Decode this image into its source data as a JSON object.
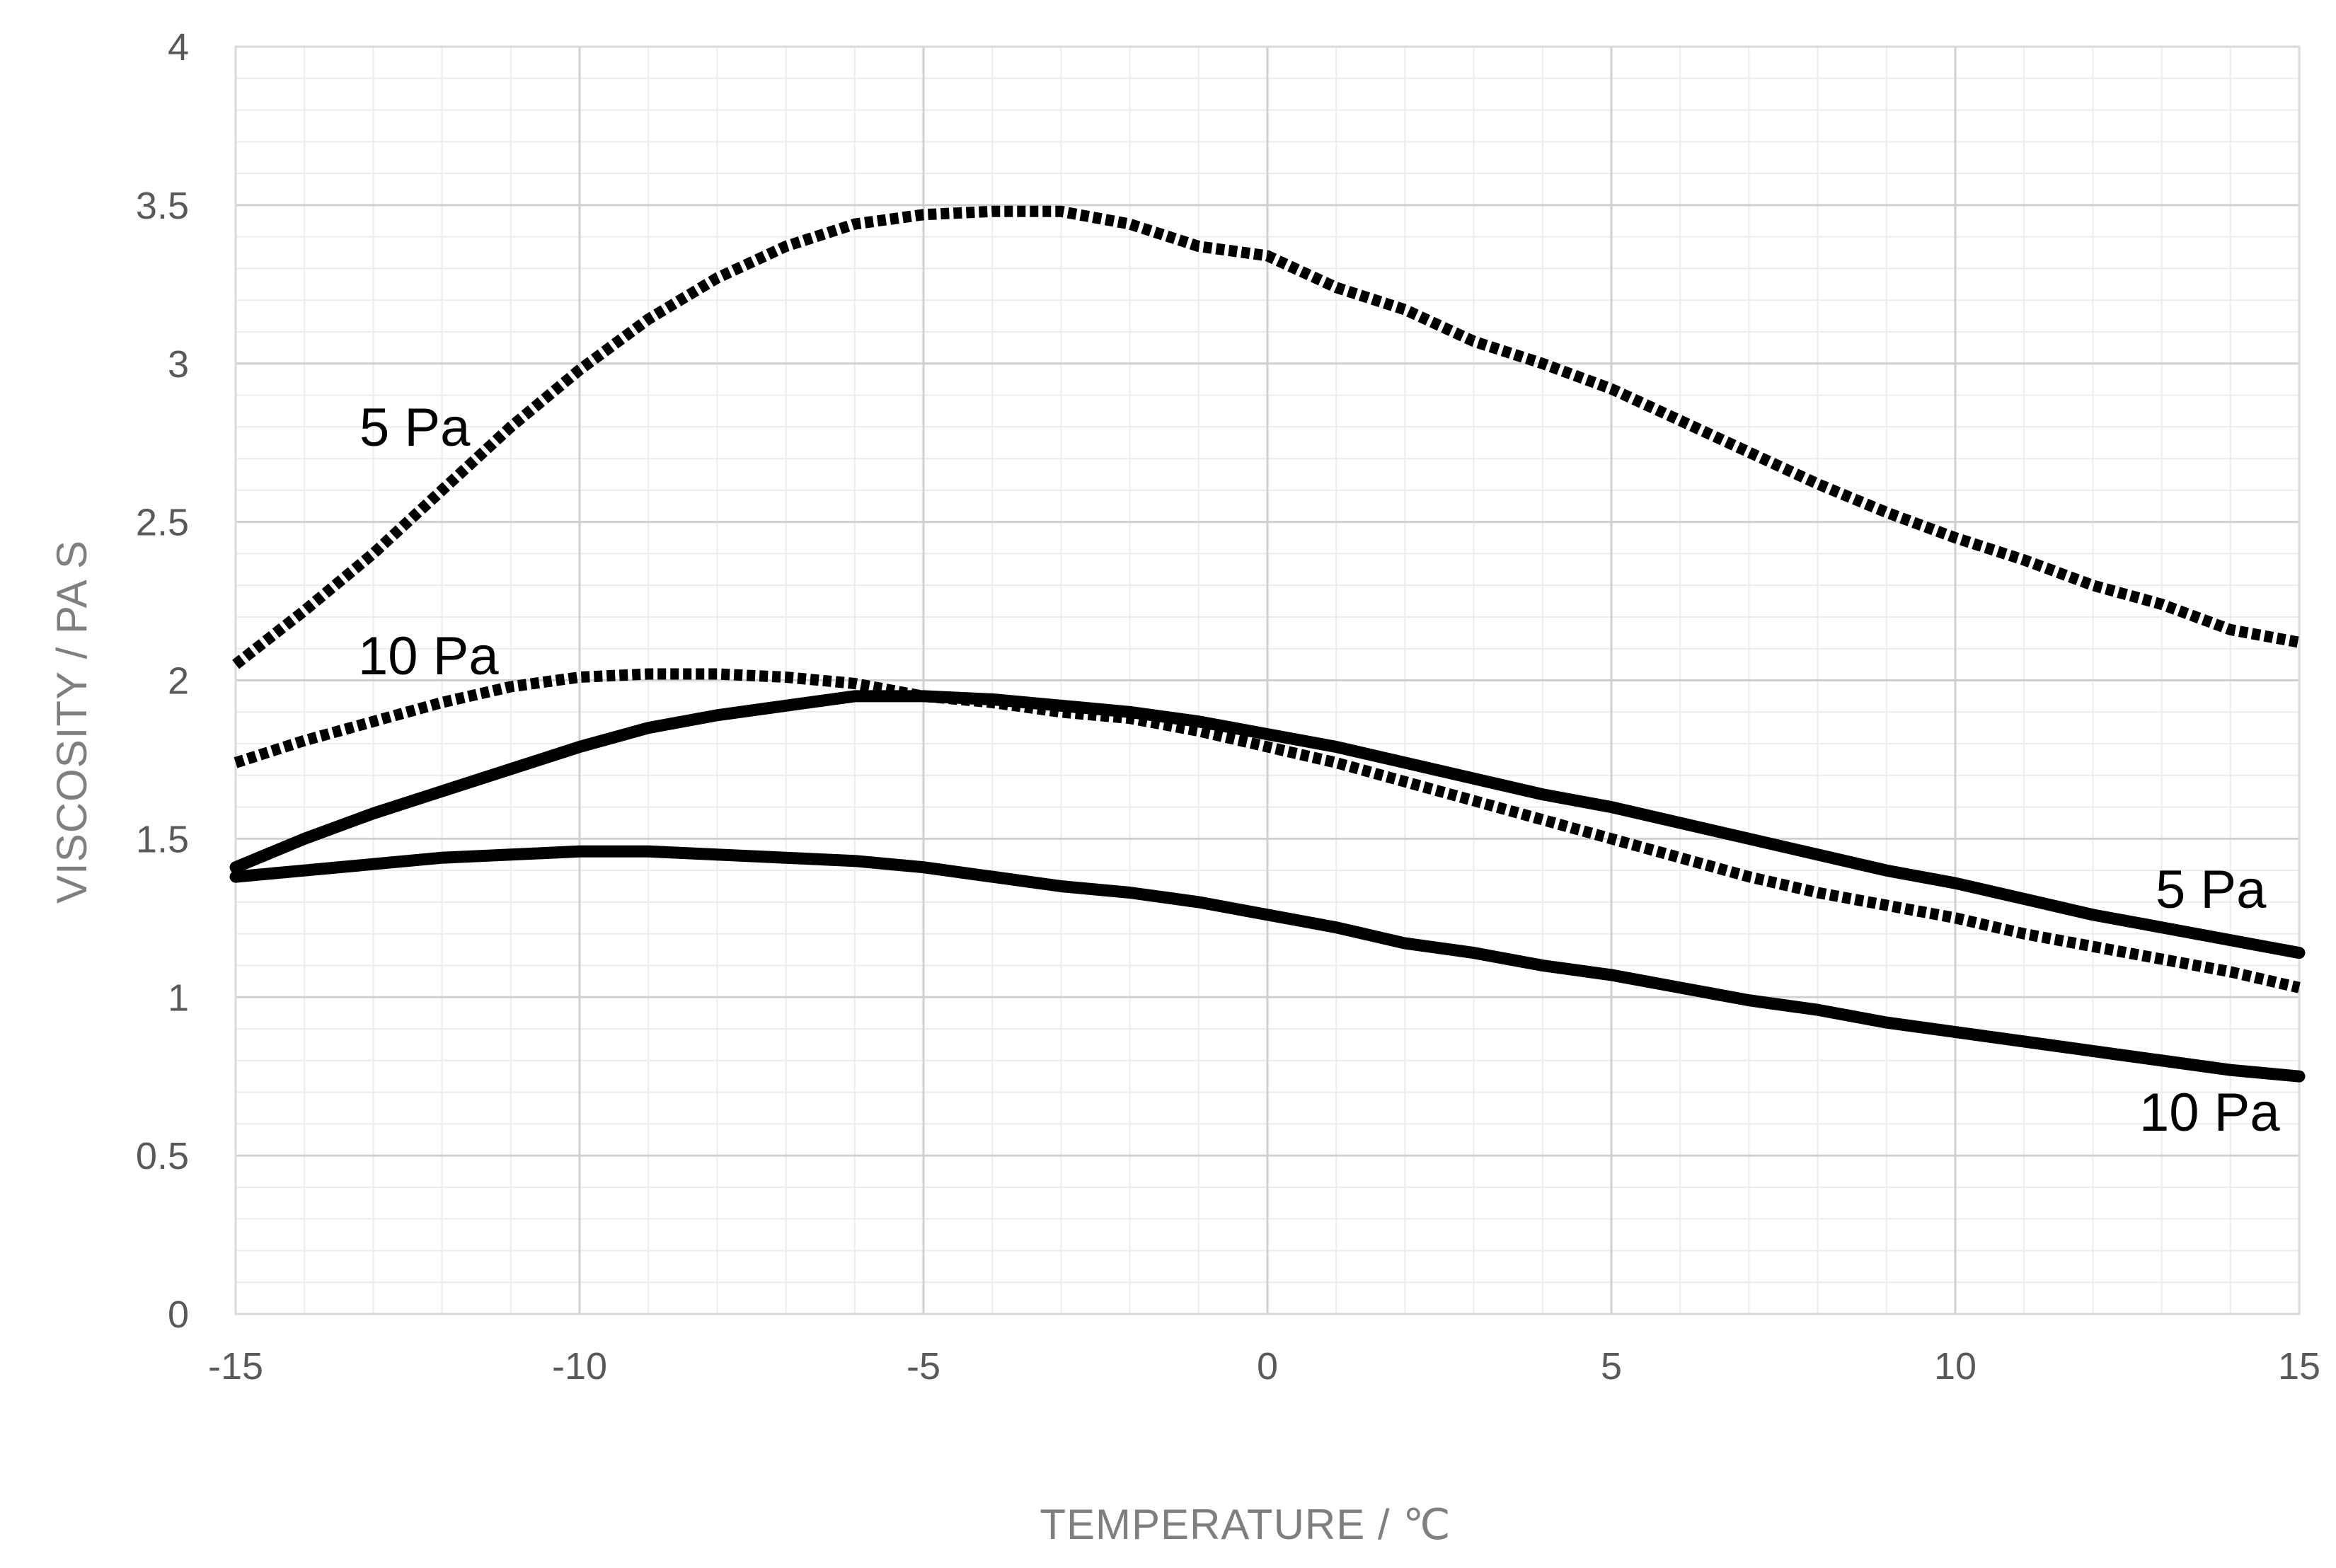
{
  "chart_data": {
    "type": "line",
    "title": "",
    "xlabel": "TEMPERATURE / ℃",
    "ylabel": "VISCOSITY / PA S",
    "xlim": [
      -15,
      15
    ],
    "ylim": [
      0,
      4
    ],
    "x_ticks": [
      -15,
      -10,
      -5,
      0,
      5,
      10,
      15
    ],
    "y_ticks": [
      0,
      0.5,
      1,
      1.5,
      2,
      2.5,
      3,
      3.5,
      4
    ],
    "x_tick_labels": [
      "-15",
      "-10",
      "-5",
      "0",
      "5",
      "10",
      "15"
    ],
    "y_tick_labels": [
      "0",
      "0.5",
      "1",
      "1.5",
      "2",
      "2.5",
      "3",
      "3.5",
      "4"
    ],
    "grid": true,
    "legend": "none",
    "annotations": [
      "5 Pa",
      "10 Pa",
      "5 Pa",
      "10 Pa"
    ],
    "series": [
      {
        "style": "dotted",
        "x": [
          -15,
          -14,
          -13,
          -12,
          -11,
          -10,
          -9,
          -8,
          -7,
          -6,
          -5,
          -4,
          -3,
          -2,
          -1,
          0,
          1,
          2,
          3,
          4,
          5,
          6,
          7,
          8,
          9,
          10,
          11,
          12,
          13,
          14,
          15
        ],
        "y": [
          2.05,
          2.22,
          2.4,
          2.6,
          2.8,
          2.98,
          3.14,
          3.27,
          3.37,
          3.44,
          3.47,
          3.48,
          3.48,
          3.44,
          3.37,
          3.34,
          3.24,
          3.17,
          3.07,
          3.0,
          2.92,
          2.82,
          2.72,
          2.62,
          2.53,
          2.45,
          2.38,
          2.3,
          2.24,
          2.16,
          2.12
        ]
      },
      {
        "style": "dotted",
        "x": [
          -15,
          -14,
          -13,
          -12,
          -11,
          -10,
          -9,
          -8,
          -7,
          -6,
          -5,
          -4,
          -3,
          -2,
          -1,
          0,
          1,
          2,
          3,
          4,
          5,
          6,
          7,
          8,
          9,
          10,
          11,
          12,
          13,
          14,
          15
        ],
        "y": [
          1.74,
          1.81,
          1.87,
          1.93,
          1.98,
          2.01,
          2.02,
          2.02,
          2.01,
          1.99,
          1.95,
          1.93,
          1.9,
          1.88,
          1.84,
          1.79,
          1.74,
          1.68,
          1.62,
          1.56,
          1.5,
          1.44,
          1.38,
          1.33,
          1.29,
          1.25,
          1.2,
          1.16,
          1.12,
          1.08,
          1.03
        ]
      },
      {
        "style": "solid",
        "x": [
          -15,
          -14,
          -13,
          -12,
          -11,
          -10,
          -9,
          -8,
          -7,
          -6,
          -5,
          -4,
          -3,
          -2,
          -1,
          0,
          1,
          2,
          3,
          4,
          5,
          6,
          7,
          8,
          9,
          10,
          11,
          12,
          13,
          14,
          15
        ],
        "y": [
          1.41,
          1.5,
          1.58,
          1.65,
          1.72,
          1.79,
          1.85,
          1.89,
          1.92,
          1.95,
          1.95,
          1.94,
          1.92,
          1.9,
          1.87,
          1.83,
          1.79,
          1.74,
          1.69,
          1.64,
          1.6,
          1.55,
          1.5,
          1.45,
          1.4,
          1.36,
          1.31,
          1.26,
          1.22,
          1.18,
          1.14
        ]
      },
      {
        "style": "solid",
        "x": [
          -15,
          -14,
          -13,
          -12,
          -11,
          -10,
          -9,
          -8,
          -7,
          -6,
          -5,
          -4,
          -3,
          -2,
          -1,
          0,
          1,
          2,
          3,
          4,
          5,
          6,
          7,
          8,
          9,
          10,
          11,
          12,
          13,
          14,
          15
        ],
        "y": [
          1.38,
          1.4,
          1.42,
          1.44,
          1.45,
          1.46,
          1.46,
          1.45,
          1.44,
          1.43,
          1.41,
          1.38,
          1.35,
          1.33,
          1.3,
          1.26,
          1.22,
          1.17,
          1.14,
          1.1,
          1.07,
          1.03,
          0.99,
          0.96,
          0.92,
          0.89,
          0.86,
          0.83,
          0.8,
          0.77,
          0.75
        ]
      }
    ]
  }
}
